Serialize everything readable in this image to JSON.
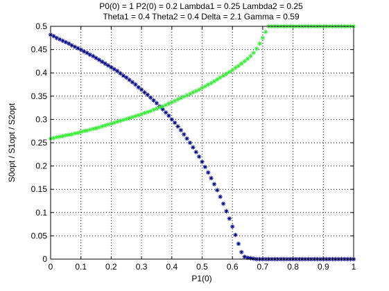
{
  "chart_data": {
    "type": "scatter",
    "title_lines": [
      "P0(0) = 1 P2(0) = 0.2 Lambda1 = 0.25 Lambda2 = 0.25",
      "Theta1 = 0.4 Theta2 = 0.4 Delta = 2.1 Gamma = 0.59"
    ],
    "xlabel": "P1(0)",
    "ylabel": "S0opt / S1opt / S2opt",
    "xlim": [
      0,
      1
    ],
    "ylim": [
      0,
      0.5
    ],
    "x_ticks": [
      0,
      0.1,
      0.2,
      0.3,
      0.4,
      0.5,
      0.6,
      0.7,
      0.8,
      0.9,
      1
    ],
    "x_tick_labels": [
      "0",
      "0.1",
      "0.2",
      "0.3",
      "0.4",
      "0.5",
      "0.6",
      "0.7",
      "0.8",
      "0.9",
      "1"
    ],
    "y_ticks": [
      0,
      0.05,
      0.1,
      0.15,
      0.2,
      0.25,
      0.3,
      0.35,
      0.4,
      0.45,
      0.5
    ],
    "y_tick_labels": [
      "0",
      "0.05",
      "0.1",
      "0.15",
      "0.2",
      "0.25",
      "0.3",
      "0.35",
      "0.4",
      "0.45",
      "0.5"
    ],
    "grid": true,
    "marker": "*",
    "series": [
      {
        "color": "#00008b",
        "x": [
          0,
          0.01,
          0.02,
          0.03,
          0.04,
          0.05,
          0.06,
          0.07,
          0.08,
          0.09,
          0.1,
          0.11,
          0.12,
          0.13,
          0.14,
          0.15,
          0.16,
          0.17,
          0.18,
          0.19,
          0.2,
          0.21,
          0.22,
          0.23,
          0.24,
          0.25,
          0.26,
          0.27,
          0.28,
          0.29,
          0.3,
          0.31,
          0.32,
          0.33,
          0.34,
          0.35,
          0.36,
          0.37,
          0.38,
          0.39,
          0.4,
          0.41,
          0.42,
          0.43,
          0.44,
          0.45,
          0.46,
          0.47,
          0.48,
          0.49,
          0.5,
          0.51,
          0.52,
          0.53,
          0.54,
          0.55,
          0.56,
          0.57,
          0.58,
          0.59,
          0.6,
          0.61,
          0.62,
          0.63,
          0.64,
          0.65,
          0.66,
          0.67,
          0.68,
          0.69,
          0.7,
          0.71,
          0.72,
          0.73,
          0.74,
          0.75,
          0.76,
          0.77,
          0.78,
          0.79,
          0.8,
          0.81,
          0.82,
          0.83,
          0.84,
          0.85,
          0.86,
          0.87,
          0.88,
          0.89,
          0.9,
          0.91,
          0.92,
          0.93,
          0.94,
          0.95,
          0.96,
          0.97,
          0.98,
          0.99,
          1
        ],
        "y": [
          0.482,
          0.479,
          0.475,
          0.472,
          0.469,
          0.466,
          0.463,
          0.459,
          0.456,
          0.453,
          0.45,
          0.446,
          0.443,
          0.439,
          0.436,
          0.432,
          0.428,
          0.424,
          0.42,
          0.416,
          0.412,
          0.408,
          0.404,
          0.399,
          0.394,
          0.39,
          0.385,
          0.38,
          0.375,
          0.369,
          0.364,
          0.358,
          0.353,
          0.347,
          0.341,
          0.335,
          0.328,
          0.322,
          0.315,
          0.308,
          0.3,
          0.293,
          0.285,
          0.277,
          0.268,
          0.259,
          0.25,
          0.24,
          0.23,
          0.22,
          0.209,
          0.198,
          0.186,
          0.174,
          0.161,
          0.148,
          0.134,
          0.119,
          0.103,
          0.087,
          0.07,
          0.052,
          0.033,
          0.015,
          0.005,
          0.003,
          0.002,
          0.001,
          0.0,
          0.0,
          0.0,
          0.0,
          0.0,
          0.0,
          0.0,
          0.0,
          0.0,
          0.0,
          0.0,
          0.0,
          0.0,
          0.0,
          0.0,
          0.0,
          0.0,
          0.0,
          0.0,
          0.0,
          0.0,
          0.0,
          0.0,
          0.0,
          0.0,
          0.0,
          0.0,
          0.0,
          0.0,
          0.0,
          0.0,
          0.0,
          0.0
        ]
      },
      {
        "color": "#33ee33",
        "x": [
          0,
          0.01,
          0.02,
          0.03,
          0.04,
          0.05,
          0.06,
          0.07,
          0.08,
          0.09,
          0.1,
          0.11,
          0.12,
          0.13,
          0.14,
          0.15,
          0.16,
          0.17,
          0.18,
          0.19,
          0.2,
          0.21,
          0.22,
          0.23,
          0.24,
          0.25,
          0.26,
          0.27,
          0.28,
          0.29,
          0.3,
          0.31,
          0.32,
          0.33,
          0.34,
          0.35,
          0.36,
          0.37,
          0.38,
          0.39,
          0.4,
          0.41,
          0.42,
          0.43,
          0.44,
          0.45,
          0.46,
          0.47,
          0.48,
          0.49,
          0.5,
          0.51,
          0.52,
          0.53,
          0.54,
          0.55,
          0.56,
          0.57,
          0.58,
          0.59,
          0.6,
          0.61,
          0.62,
          0.63,
          0.64,
          0.65,
          0.66,
          0.67,
          0.68,
          0.69,
          0.7,
          0.71,
          0.72,
          0.73,
          0.74,
          0.75,
          0.76,
          0.77,
          0.78,
          0.79,
          0.8,
          0.81,
          0.82,
          0.83,
          0.84,
          0.85,
          0.86,
          0.87,
          0.88,
          0.89,
          0.9,
          0.91,
          0.92,
          0.93,
          0.94,
          0.95,
          0.96,
          0.97,
          0.98,
          0.99,
          1
        ],
        "y": [
          0.259,
          0.26,
          0.262,
          0.263,
          0.264,
          0.266,
          0.267,
          0.268,
          0.27,
          0.271,
          0.273,
          0.275,
          0.276,
          0.278,
          0.28,
          0.281,
          0.283,
          0.285,
          0.287,
          0.289,
          0.291,
          0.293,
          0.295,
          0.297,
          0.299,
          0.301,
          0.303,
          0.305,
          0.307,
          0.309,
          0.311,
          0.314,
          0.316,
          0.318,
          0.321,
          0.323,
          0.326,
          0.328,
          0.331,
          0.334,
          0.337,
          0.34,
          0.343,
          0.346,
          0.349,
          0.352,
          0.355,
          0.358,
          0.361,
          0.364,
          0.368,
          0.371,
          0.375,
          0.378,
          0.382,
          0.386,
          0.39,
          0.394,
          0.398,
          0.402,
          0.406,
          0.411,
          0.415,
          0.42,
          0.425,
          0.43,
          0.436,
          0.443,
          0.452,
          0.463,
          0.475,
          0.488,
          0.5,
          0.5,
          0.5,
          0.5,
          0.5,
          0.5,
          0.5,
          0.5,
          0.5,
          0.5,
          0.5,
          0.5,
          0.5,
          0.5,
          0.5,
          0.5,
          0.5,
          0.5,
          0.5,
          0.5,
          0.5,
          0.5,
          0.5,
          0.5,
          0.5,
          0.5,
          0.5,
          0.5,
          0.5
        ]
      }
    ]
  }
}
